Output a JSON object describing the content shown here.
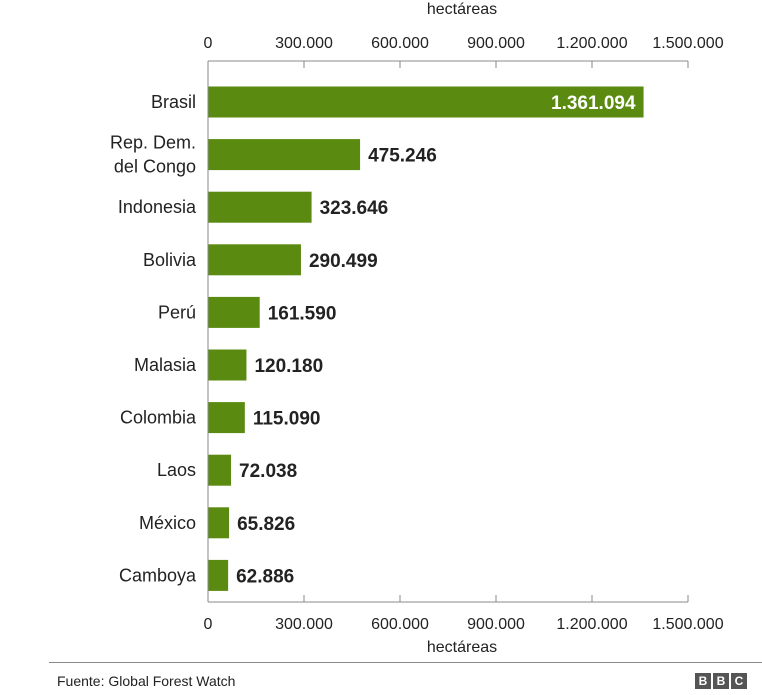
{
  "chart_data": {
    "type": "bar",
    "orientation": "horizontal",
    "xlabel": "hectáreas",
    "xlim": [
      0,
      1500000
    ],
    "x_ticks": [
      0,
      300000,
      600000,
      900000,
      1200000,
      1500000
    ],
    "x_tick_labels": [
      "0",
      "300.000",
      "600.000",
      "900.000",
      "1.200.000",
      "1.500.000"
    ],
    "categories": [
      [
        "Brasil"
      ],
      [
        "Rep. Dem.",
        "del Congo"
      ],
      [
        "Indonesia"
      ],
      [
        "Bolivia"
      ],
      [
        "Perú"
      ],
      [
        "Malasia"
      ],
      [
        "Colombia"
      ],
      [
        "Laos"
      ],
      [
        "México"
      ],
      [
        "Camboya"
      ]
    ],
    "values": [
      1361094,
      475246,
      323646,
      290499,
      161590,
      120180,
      115090,
      72038,
      65826,
      62886
    ],
    "value_labels": [
      "1.361.094",
      "475.246",
      "323.646",
      "290.499",
      "161.590",
      "120.180",
      "115.090",
      "72.038",
      "65.826",
      "62.886"
    ],
    "bar_color": "#5a8a0f",
    "grid": false
  },
  "footer": {
    "source": "Fuente: Global Forest Watch",
    "logo_letters": [
      "B",
      "B",
      "C"
    ]
  }
}
